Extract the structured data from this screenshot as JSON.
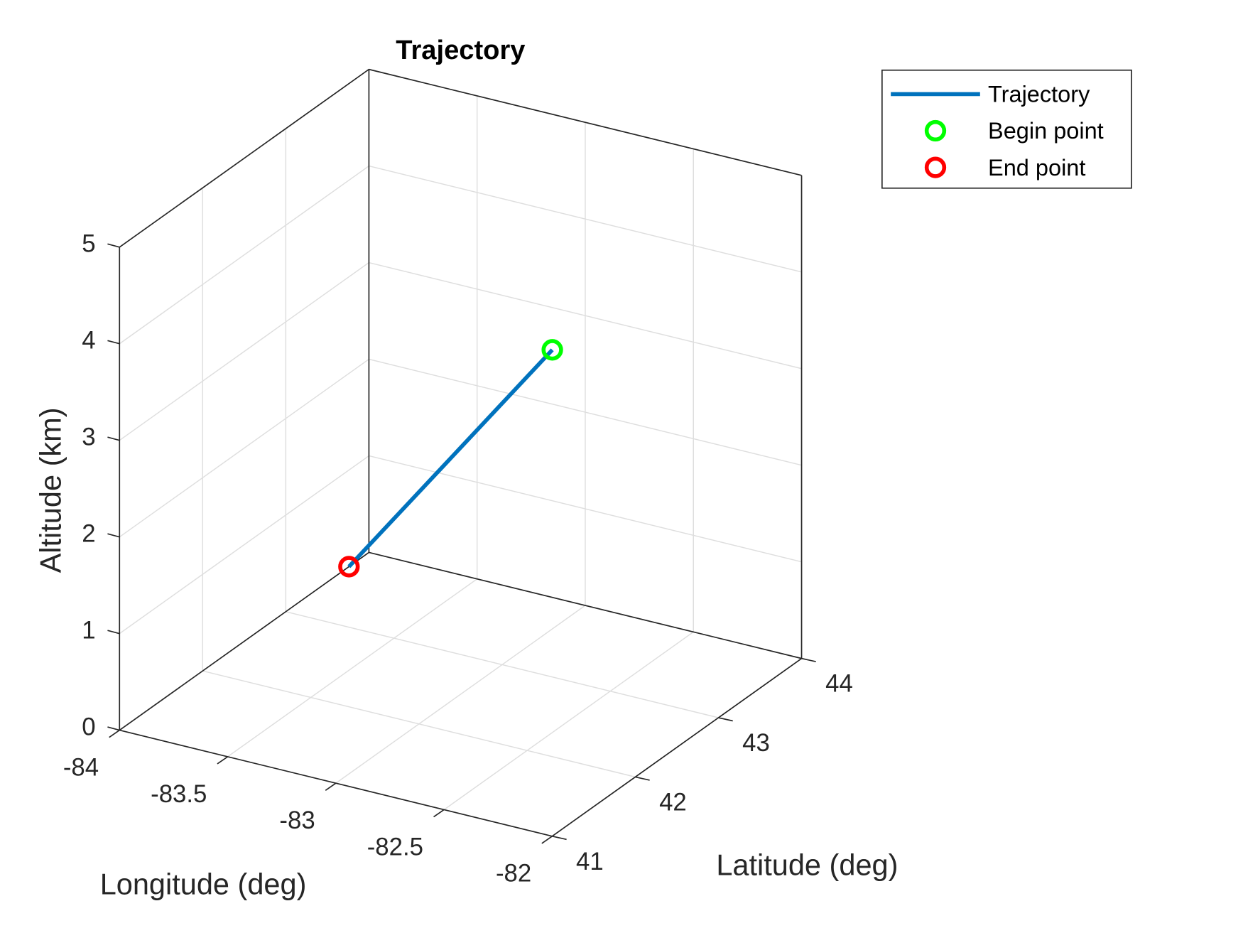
{
  "chart_data": {
    "type": "line3d",
    "title": "Trajectory",
    "xlabel": "Longitude (deg)",
    "ylabel": "Latitude (deg)",
    "zlabel": "Altitude (km)",
    "xlim": [
      -84,
      -82
    ],
    "ylim": [
      41,
      44
    ],
    "zlim": [
      0,
      5
    ],
    "xticks": [
      -84,
      -83.5,
      -83,
      -82.5,
      -82
    ],
    "yticks": [
      41,
      42,
      43,
      44
    ],
    "zticks": [
      0,
      1,
      2,
      3,
      4,
      5
    ],
    "grid": true,
    "legend": "northeastoutside",
    "series": [
      {
        "name": "Trajectory",
        "color": "#0072bd",
        "style": "line",
        "x": [
          -83.06,
          -84
        ],
        "y": [
          43.76,
          43.76
        ],
        "z": [
          2.76,
          0
        ]
      },
      {
        "name": "Begin point",
        "color": "#00ff00",
        "style": "marker",
        "x": [
          -83.06
        ],
        "y": [
          43.76
        ],
        "z": [
          2.76
        ]
      },
      {
        "name": "End point",
        "color": "#ff0000",
        "style": "marker",
        "x": [
          -84
        ],
        "y": [
          43.76
        ],
        "z": [
          0
        ]
      }
    ]
  }
}
